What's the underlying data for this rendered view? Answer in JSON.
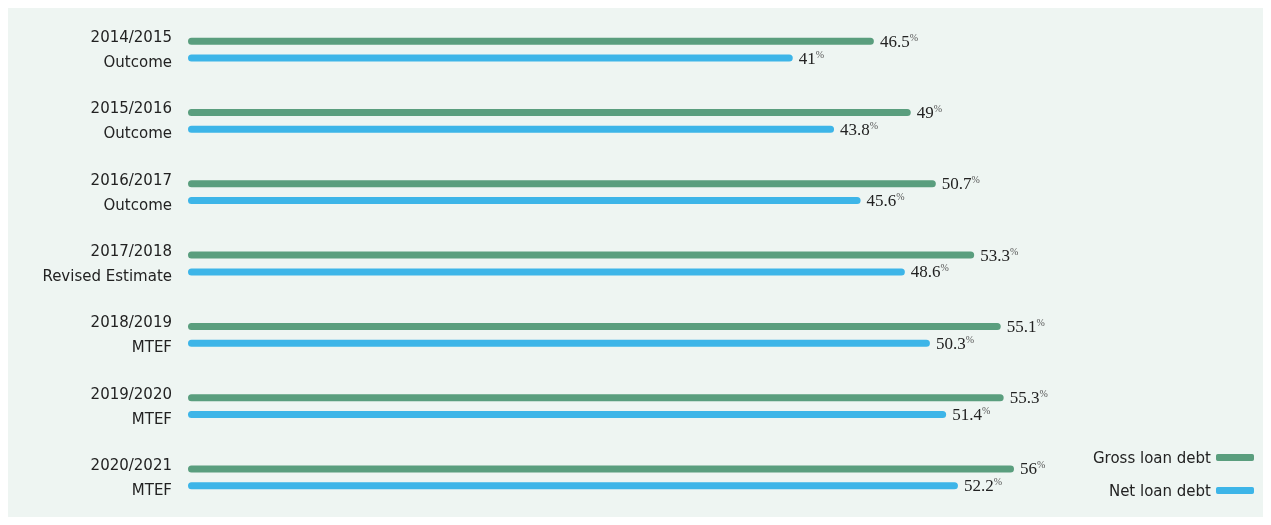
{
  "chart_data": {
    "type": "bar",
    "orientation": "horizontal",
    "categories": [
      "2014/2015\nOutcome",
      "2015/2016\nOutcome",
      "2016/2017\nOutcome",
      "2017/2018\nRevised Estimate",
      "2018/2019\nMTEF",
      "2019/2020\nMTEF",
      "2020/2021\nMTEF"
    ],
    "series": [
      {
        "name": "Gross loan debt",
        "color": "#5a9e7e",
        "values": [
          46.5,
          49,
          50.7,
          53.3,
          55.1,
          55.3,
          56
        ],
        "value_labels": [
          "46.5$^{%}$",
          "49$^{%}$",
          "50.7$^{%}$",
          "53.3$^{%}$",
          "55.1$^{%}$",
          "55.3$^{%}$",
          "56$^{%}$"
        ]
      },
      {
        "name": "Net loan debt",
        "color": "#3db5e8",
        "values": [
          41,
          43.8,
          45.6,
          48.6,
          50.3,
          51.4,
          52.2
        ],
        "value_labels": [
          "41$^{%}$",
          "43.8$^{%}$",
          "45.6$^{%}$",
          "48.6$^{%}$",
          "50.3$^{%}$",
          "51.4$^{%}$",
          "52.2$^{%}$"
        ]
      }
    ],
    "legend": "bottom right",
    "grid": false
  }
}
